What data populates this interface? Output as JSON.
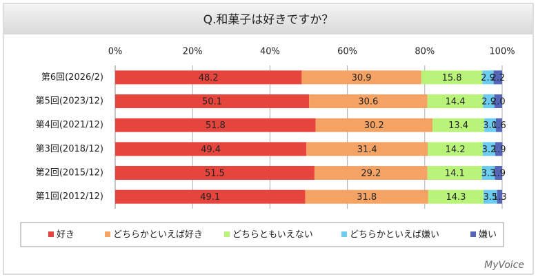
{
  "chart_data": {
    "type": "stacked-barh",
    "title": "Q.和菓子は好きですか？",
    "categories": [
      "第6回(2026/2)",
      "第5回(2023/12)",
      "第4回(2021/12)",
      "第3回(2018/12)",
      "第2回(2015/12)",
      "第1回(2012/12)"
    ],
    "series": [
      {
        "name": "好き",
        "color": "#e5453c",
        "values": [
          48.2,
          50.1,
          51.8,
          49.4,
          51.5,
          49.1
        ]
      },
      {
        "name": "どちらかといえば好き",
        "color": "#f5a364",
        "values": [
          30.9,
          30.6,
          30.2,
          31.4,
          29.2,
          31.8
        ]
      },
      {
        "name": "どちらともいえない",
        "color": "#b9f37a",
        "values": [
          15.8,
          14.4,
          13.4,
          14.2,
          14.1,
          14.3
        ]
      },
      {
        "name": "どちらかといえば嫌い",
        "color": "#6ccdf0",
        "values": [
          2.9,
          2.9,
          3.0,
          3.2,
          3.3,
          3.5
        ],
        "value_labels": [
          "2.9",
          "2.9",
          "3.0",
          "3.2",
          "3.3",
          "3.5"
        ]
      },
      {
        "name": "嫌い",
        "color": "#5566b8",
        "values": [
          2.2,
          2.0,
          1.6,
          1.9,
          1.9,
          1.3
        ],
        "value_labels": [
          "2.2",
          "2.0",
          "1.6",
          "1.9",
          "1.9",
          "1.3"
        ]
      }
    ],
    "xlim": [
      0,
      100
    ],
    "xticks": [
      {
        "value": 0,
        "label": "0%"
      },
      {
        "value": 20,
        "label": "20%"
      },
      {
        "value": 40,
        "label": "40%"
      },
      {
        "value": 60,
        "label": "60%"
      },
      {
        "value": 80,
        "label": "80%"
      },
      {
        "value": 100,
        "label": "100%"
      }
    ],
    "grid": true,
    "legend": "bottom",
    "source": "MyVoice"
  }
}
